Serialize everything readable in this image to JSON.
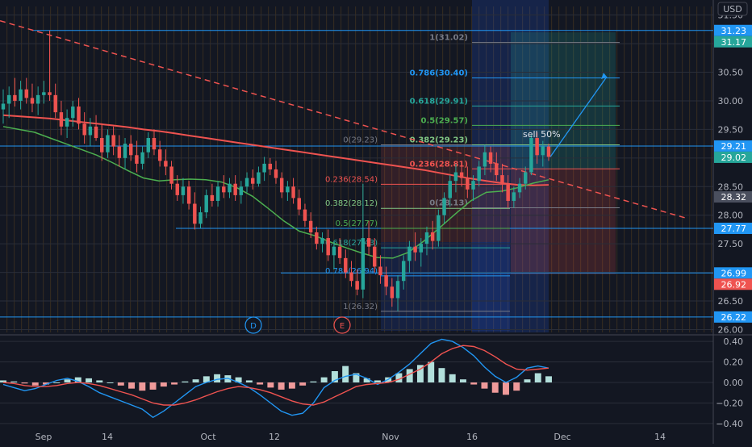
{
  "currency_label": "USD",
  "colors": {
    "background": "#131722",
    "up": "#26a69a",
    "down": "#ef5350",
    "level_line": "#2196f3",
    "ma_slow": "#ef5350",
    "ma_fast": "#4caf50",
    "macd_line": "#2196f3",
    "signal_line": "#ef5350",
    "axis_text": "#b2b5be",
    "grid": "#2a2e39"
  },
  "chart_data": [
    {
      "type": "line",
      "panel": "price",
      "grid": true,
      "y_axis_ticks": [
        26.0,
        26.5,
        27.0,
        27.5,
        28.0,
        28.5,
        29.0,
        29.5,
        30.0,
        30.5,
        31.0,
        31.5
      ],
      "y_axis_tick_labels": [
        "26.00",
        "26.50",
        "27.00",
        "27.50",
        "28.00",
        "28.50",
        "29.00",
        "29.50",
        "30.00",
        "30.50",
        "",
        "31.50"
      ],
      "x_axis_labels": [
        "Sep",
        "14",
        "Oct",
        "12",
        "Nov",
        "16",
        "Dec",
        "14"
      ],
      "ylim": [
        25.95,
        31.65
      ],
      "price_tags": [
        {
          "label": "31.23",
          "value": 31.23,
          "color": "#2196f3"
        },
        {
          "label": "31.17",
          "value": 31.17,
          "color": "#26a69a"
        },
        {
          "label": "29.21",
          "value": 29.21,
          "color": "#2196f3"
        },
        {
          "label": "29.02",
          "value": 29.02,
          "color": "#26a69a"
        },
        {
          "label": "28.32",
          "value": 28.32,
          "color": "#4a4f5e"
        },
        {
          "label": "27.77",
          "value": 27.77,
          "color": "#2196f3"
        },
        {
          "label": "26.99",
          "value": 26.99,
          "color": "#2196f3"
        },
        {
          "label": "26.92",
          "value": 26.92,
          "color": "#ef5350"
        },
        {
          "label": "26.22",
          "value": 26.22,
          "color": "#2196f3"
        }
      ],
      "horizontal_levels": [
        31.23,
        29.21,
        27.77,
        26.99,
        26.22
      ],
      "fib_left": [
        {
          "label": "0(29.23)",
          "value": 29.23,
          "color": "#787b86"
        },
        {
          "label": "0.236(28.54)",
          "value": 28.54,
          "color": "#ef5350"
        },
        {
          "label": "0.382(28.12)",
          "value": 28.12,
          "color": "#81c784"
        },
        {
          "label": "0.5(27.77)",
          "value": 27.77,
          "color": "#4caf50"
        },
        {
          "label": "0.618(27.43)",
          "value": 27.43,
          "color": "#26a69a"
        },
        {
          "label": "0.786(26.94)",
          "value": 26.94,
          "color": "#2196f3"
        },
        {
          "label": "1(26.32)",
          "value": 26.32,
          "color": "#787b86"
        }
      ],
      "fib_right": [
        {
          "label": "1(31.02)",
          "value": 31.02,
          "color": "#787b86"
        },
        {
          "label": "0.786(30.40)",
          "value": 30.4,
          "color": "#2196f3"
        },
        {
          "label": "0.618(29.91)",
          "value": 29.91,
          "color": "#26a69a"
        },
        {
          "label": "0.5(29.57)",
          "value": 29.57,
          "color": "#4caf50"
        },
        {
          "label": "0.382(29.23)",
          "value": 29.23,
          "color": "#81c784"
        },
        {
          "label": "0.236(28.81)",
          "value": 28.81,
          "color": "#ef5350"
        },
        {
          "label": "0(28.13)",
          "value": 28.13,
          "color": "#787b86"
        }
      ],
      "annotation": "sell 50%",
      "pattern_markers": [
        "D",
        "E"
      ],
      "ohlc": [
        [
          29.85,
          30.2,
          29.6,
          29.95
        ],
        [
          29.95,
          30.25,
          29.7,
          30.1
        ],
        [
          30.1,
          30.4,
          29.9,
          30.0
        ],
        [
          30.0,
          30.35,
          29.85,
          30.2
        ],
        [
          30.2,
          30.4,
          29.95,
          30.05
        ],
        [
          30.05,
          30.3,
          29.8,
          29.95
        ],
        [
          29.95,
          30.25,
          29.75,
          30.1
        ],
        [
          30.1,
          30.35,
          29.95,
          30.15
        ],
        [
          30.15,
          31.23,
          30.0,
          30.1
        ],
        [
          30.1,
          30.3,
          29.7,
          29.8
        ],
        [
          29.8,
          30.0,
          29.4,
          29.55
        ],
        [
          29.55,
          29.85,
          29.35,
          29.7
        ],
        [
          29.7,
          30.0,
          29.55,
          29.9
        ],
        [
          29.9,
          30.05,
          29.5,
          29.6
        ],
        [
          29.6,
          29.8,
          29.25,
          29.4
        ],
        [
          29.4,
          29.7,
          29.2,
          29.55
        ],
        [
          29.55,
          29.75,
          29.3,
          29.35
        ],
        [
          29.35,
          29.6,
          28.95,
          29.1
        ],
        [
          29.1,
          29.5,
          29.0,
          29.4
        ],
        [
          29.4,
          29.55,
          29.05,
          29.2
        ],
        [
          29.2,
          29.4,
          28.85,
          29.0
        ],
        [
          29.0,
          29.35,
          28.8,
          29.25
        ],
        [
          29.25,
          29.4,
          28.95,
          29.05
        ],
        [
          29.05,
          29.3,
          28.75,
          28.9
        ],
        [
          28.9,
          29.2,
          28.8,
          29.1
        ],
        [
          29.1,
          29.45,
          29.0,
          29.35
        ],
        [
          29.35,
          29.5,
          29.05,
          29.15
        ],
        [
          29.15,
          29.3,
          28.85,
          28.95
        ],
        [
          28.95,
          29.15,
          28.7,
          28.85
        ],
        [
          28.85,
          28.95,
          28.45,
          28.55
        ],
        [
          28.55,
          28.7,
          28.25,
          28.35
        ],
        [
          28.35,
          28.65,
          28.2,
          28.5
        ],
        [
          28.5,
          28.6,
          28.1,
          28.2
        ],
        [
          28.2,
          28.4,
          27.75,
          27.85
        ],
        [
          27.85,
          28.15,
          27.77,
          28.05
        ],
        [
          28.05,
          28.45,
          27.95,
          28.35
        ],
        [
          28.35,
          28.55,
          28.15,
          28.25
        ],
        [
          28.25,
          28.6,
          28.15,
          28.5
        ],
        [
          28.5,
          28.7,
          28.3,
          28.4
        ],
        [
          28.4,
          28.65,
          28.3,
          28.55
        ],
        [
          28.55,
          28.7,
          28.25,
          28.35
        ],
        [
          28.35,
          28.6,
          28.2,
          28.5
        ],
        [
          28.5,
          28.75,
          28.4,
          28.65
        ],
        [
          28.65,
          28.8,
          28.45,
          28.55
        ],
        [
          28.55,
          28.85,
          28.5,
          28.75
        ],
        [
          28.75,
          29.02,
          28.6,
          28.9
        ],
        [
          28.9,
          29.0,
          28.7,
          28.8
        ],
        [
          28.8,
          28.95,
          28.55,
          28.65
        ],
        [
          28.65,
          28.75,
          28.3,
          28.4
        ],
        [
          28.4,
          28.6,
          28.25,
          28.5
        ],
        [
          28.5,
          28.65,
          28.2,
          28.3
        ],
        [
          28.3,
          28.45,
          28.0,
          28.1
        ],
        [
          28.1,
          28.2,
          27.8,
          27.9
        ],
        [
          27.9,
          28.05,
          27.6,
          27.7
        ],
        [
          27.7,
          27.8,
          27.4,
          27.5
        ],
        [
          27.5,
          27.7,
          27.35,
          27.6
        ],
        [
          27.6,
          27.75,
          27.2,
          27.3
        ],
        [
          27.3,
          27.55,
          27.05,
          27.45
        ],
        [
          27.45,
          27.6,
          27.15,
          27.25
        ],
        [
          27.25,
          27.4,
          26.9,
          27.0
        ],
        [
          27.0,
          27.2,
          26.75,
          26.85
        ],
        [
          26.85,
          27.05,
          26.6,
          26.7
        ],
        [
          26.7,
          28.55,
          26.55,
          27.6
        ],
        [
          27.6,
          27.9,
          27.3,
          27.45
        ],
        [
          27.45,
          27.6,
          27.0,
          27.1
        ],
        [
          27.1,
          27.3,
          26.8,
          26.95
        ],
        [
          26.95,
          27.1,
          26.6,
          26.75
        ],
        [
          26.75,
          26.9,
          26.4,
          26.55
        ],
        [
          26.55,
          26.95,
          26.32,
          26.85
        ],
        [
          26.85,
          27.3,
          26.7,
          27.2
        ],
        [
          27.2,
          27.55,
          27.0,
          27.45
        ],
        [
          27.45,
          27.7,
          27.2,
          27.35
        ],
        [
          27.35,
          27.6,
          27.1,
          27.5
        ],
        [
          27.5,
          27.8,
          27.3,
          27.7
        ],
        [
          27.7,
          27.9,
          27.4,
          27.55
        ],
        [
          27.55,
          28.1,
          27.45,
          28.0
        ],
        [
          28.0,
          28.4,
          27.85,
          28.3
        ],
        [
          28.3,
          28.7,
          28.15,
          28.6
        ],
        [
          28.6,
          28.9,
          28.4,
          28.75
        ],
        [
          28.75,
          28.95,
          28.5,
          28.65
        ],
        [
          28.65,
          28.85,
          28.3,
          28.45
        ],
        [
          28.45,
          28.7,
          28.25,
          28.6
        ],
        [
          28.6,
          28.95,
          28.5,
          28.85
        ],
        [
          28.85,
          29.23,
          28.7,
          29.1
        ],
        [
          29.1,
          29.2,
          28.75,
          28.9
        ],
        [
          28.9,
          29.1,
          28.6,
          28.7
        ],
        [
          28.7,
          28.9,
          28.4,
          28.55
        ],
        [
          28.55,
          28.7,
          28.13,
          28.25
        ],
        [
          28.25,
          28.5,
          28.13,
          28.4
        ],
        [
          28.4,
          28.65,
          28.3,
          28.55
        ],
        [
          28.55,
          28.85,
          28.45,
          28.75
        ],
        [
          28.75,
          29.4,
          28.7,
          29.35
        ],
        [
          29.35,
          29.45,
          28.9,
          29.05
        ],
        [
          29.05,
          29.3,
          28.85,
          29.2
        ],
        [
          29.2,
          29.25,
          28.95,
          29.02
        ]
      ],
      "ma_slow": [
        29.75,
        29.73,
        29.71,
        29.69,
        29.66,
        29.63,
        29.6,
        29.57,
        29.54,
        29.5,
        29.47,
        29.43,
        29.39,
        29.35,
        29.31,
        29.27,
        29.23,
        29.19,
        29.15,
        29.11,
        29.07,
        29.03,
        28.99,
        28.95,
        28.91,
        28.87,
        28.83,
        28.79,
        28.74,
        28.69,
        28.64,
        28.6,
        28.56,
        28.53,
        28.52,
        28.53
      ],
      "ma_fast": [
        29.55,
        29.5,
        29.45,
        29.35,
        29.25,
        29.15,
        29.05,
        28.92,
        28.78,
        28.65,
        28.6,
        28.62,
        28.63,
        28.62,
        28.58,
        28.48,
        28.33,
        28.12,
        27.9,
        27.72,
        27.64,
        27.53,
        27.43,
        27.34,
        27.26,
        27.25,
        27.35,
        27.55,
        27.78,
        28.02,
        28.25,
        28.4,
        28.42,
        28.48,
        28.56,
        28.62
      ],
      "dashed_trendline": [
        31.4,
        27.95
      ]
    },
    {
      "type": "bar",
      "panel": "macd",
      "grid": true,
      "y_axis_ticks": [
        -0.4,
        -0.2,
        0.0,
        0.2,
        0.4
      ],
      "y_axis_tick_labels": [
        "−0.40",
        "−0.20",
        "0.00",
        "0.20",
        "0.40"
      ],
      "ylim": [
        -0.44,
        0.44
      ],
      "histogram": [
        0.02,
        0.01,
        -0.01,
        -0.03,
        -0.02,
        0.0,
        0.03,
        0.05,
        0.04,
        0.02,
        0.0,
        -0.03,
        -0.06,
        -0.08,
        -0.07,
        -0.04,
        -0.02,
        0.01,
        0.03,
        0.06,
        0.08,
        0.07,
        0.05,
        0.02,
        -0.02,
        -0.05,
        -0.07,
        -0.06,
        -0.03,
        0.01,
        0.05,
        0.11,
        0.16,
        0.09,
        0.04,
        0.02,
        0.05,
        0.09,
        0.13,
        0.17,
        0.2,
        0.14,
        0.08,
        0.03,
        -0.02,
        -0.06,
        -0.1,
        -0.12,
        -0.08,
        0.03,
        0.09,
        0.06
      ],
      "macd_line": [
        -0.02,
        -0.05,
        -0.08,
        -0.06,
        -0.02,
        0.02,
        0.04,
        0.01,
        -0.04,
        -0.1,
        -0.14,
        -0.18,
        -0.22,
        -0.26,
        -0.34,
        -0.28,
        -0.2,
        -0.12,
        -0.04,
        0.0,
        0.03,
        0.04,
        0.0,
        -0.05,
        -0.12,
        -0.2,
        -0.28,
        -0.32,
        -0.3,
        -0.2,
        -0.05,
        0.02,
        0.06,
        0.08,
        0.04,
        -0.02,
        0.03,
        0.1,
        0.18,
        0.28,
        0.38,
        0.42,
        0.4,
        0.34,
        0.26,
        0.15,
        0.06,
        0.0,
        0.05,
        0.14,
        0.16,
        0.14
      ],
      "signal_line": [
        0.0,
        -0.01,
        -0.03,
        -0.04,
        -0.04,
        -0.03,
        -0.01,
        0.0,
        -0.01,
        -0.03,
        -0.06,
        -0.09,
        -0.12,
        -0.16,
        -0.2,
        -0.22,
        -0.22,
        -0.2,
        -0.17,
        -0.13,
        -0.09,
        -0.06,
        -0.04,
        -0.05,
        -0.07,
        -0.1,
        -0.14,
        -0.18,
        -0.21,
        -0.22,
        -0.19,
        -0.14,
        -0.09,
        -0.04,
        -0.02,
        -0.01,
        0.0,
        0.03,
        0.08,
        0.13,
        0.2,
        0.28,
        0.33,
        0.36,
        0.35,
        0.31,
        0.25,
        0.18,
        0.13,
        0.12,
        0.13,
        0.14
      ]
    }
  ]
}
